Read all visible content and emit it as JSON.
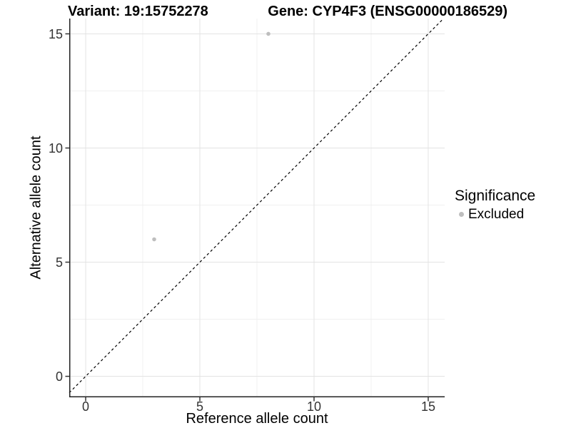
{
  "chart_data": {
    "type": "scatter",
    "title_left": "Variant: 19:15752278",
    "title_right": "Gene: CYP4F3 (ENSG00000186529)",
    "xlabel": "Reference allele count",
    "ylabel": "Alternative allele count",
    "xlim": [
      -0.72,
      15.72
    ],
    "ylim": [
      -0.92,
      15.67
    ],
    "x_ticks": [
      0,
      5,
      10,
      15
    ],
    "y_ticks": [
      0,
      5,
      10,
      15
    ],
    "x_minor_ticks": [
      2.5,
      7.5,
      12.5
    ],
    "y_minor_ticks": [
      2.5,
      7.5,
      12.5
    ],
    "grid": true,
    "identity_line": {
      "equation": "y = x",
      "style": "dashed",
      "color": "#000000"
    },
    "series": [
      {
        "name": "Excluded",
        "color": "#bebebe",
        "point_radius": 2.8,
        "points": [
          {
            "x": 8,
            "y": 15
          },
          {
            "x": 3,
            "y": 6
          }
        ]
      }
    ],
    "legend": {
      "title": "Significance",
      "position": "right",
      "entries": [
        {
          "label": "Excluded",
          "color": "#bebebe"
        }
      ]
    },
    "colors": {
      "background": "#ffffff",
      "grid_major": "#e3e3e3",
      "grid_minor": "#f0f0f0",
      "axis_line": "#222222",
      "tick_text": "#333333",
      "title_text": "#000000"
    }
  }
}
